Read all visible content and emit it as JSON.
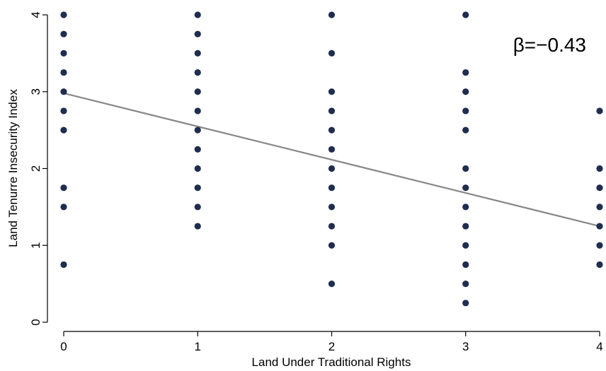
{
  "chart_data": {
    "type": "scatter",
    "xlabel": "Land Under Traditional Rights",
    "ylabel": "Land Tenurre Insecurity Index",
    "xlim": [
      0,
      4
    ],
    "ylim": [
      0,
      4
    ],
    "x_ticks": [
      "0",
      "1",
      "2",
      "3",
      "4"
    ],
    "y_ticks": [
      "0",
      "1",
      "2",
      "3",
      "4"
    ],
    "grid": false,
    "annotation": "β=−0.43",
    "colors": {
      "points": "#1f2d4f",
      "fit_line": "#888888"
    },
    "points": [
      {
        "x": 0,
        "y": 4
      },
      {
        "x": 0,
        "y": 3.75
      },
      {
        "x": 0,
        "y": 3.5
      },
      {
        "x": 0,
        "y": 3.25
      },
      {
        "x": 0,
        "y": 3
      },
      {
        "x": 0,
        "y": 2.75
      },
      {
        "x": 0,
        "y": 2.5
      },
      {
        "x": 0,
        "y": 1.75
      },
      {
        "x": 0,
        "y": 1.5
      },
      {
        "x": 0,
        "y": 0.75
      },
      {
        "x": 1,
        "y": 4
      },
      {
        "x": 1,
        "y": 3.75
      },
      {
        "x": 1,
        "y": 3.5
      },
      {
        "x": 1,
        "y": 3.25
      },
      {
        "x": 1,
        "y": 3
      },
      {
        "x": 1,
        "y": 2.75
      },
      {
        "x": 1,
        "y": 2.5
      },
      {
        "x": 1,
        "y": 2.25
      },
      {
        "x": 1,
        "y": 2
      },
      {
        "x": 1,
        "y": 1.75
      },
      {
        "x": 1,
        "y": 1.5
      },
      {
        "x": 1,
        "y": 1.25
      },
      {
        "x": 2,
        "y": 4
      },
      {
        "x": 2,
        "y": 3.5
      },
      {
        "x": 2,
        "y": 3
      },
      {
        "x": 2,
        "y": 2.75
      },
      {
        "x": 2,
        "y": 2.5
      },
      {
        "x": 2,
        "y": 2.25
      },
      {
        "x": 2,
        "y": 2
      },
      {
        "x": 2,
        "y": 1.75
      },
      {
        "x": 2,
        "y": 1.5
      },
      {
        "x": 2,
        "y": 1.25
      },
      {
        "x": 2,
        "y": 1
      },
      {
        "x": 2,
        "y": 0.5
      },
      {
        "x": 3,
        "y": 4
      },
      {
        "x": 3,
        "y": 3.25
      },
      {
        "x": 3,
        "y": 3
      },
      {
        "x": 3,
        "y": 2.75
      },
      {
        "x": 3,
        "y": 2.5
      },
      {
        "x": 3,
        "y": 2
      },
      {
        "x": 3,
        "y": 1.75
      },
      {
        "x": 3,
        "y": 1.5
      },
      {
        "x": 3,
        "y": 1.25
      },
      {
        "x": 3,
        "y": 1
      },
      {
        "x": 3,
        "y": 0.75
      },
      {
        "x": 3,
        "y": 0.5
      },
      {
        "x": 3,
        "y": 0.25
      },
      {
        "x": 4,
        "y": 2.75
      },
      {
        "x": 4,
        "y": 2
      },
      {
        "x": 4,
        "y": 1.75
      },
      {
        "x": 4,
        "y": 1.5
      },
      {
        "x": 4,
        "y": 1.25
      },
      {
        "x": 4,
        "y": 1
      },
      {
        "x": 4,
        "y": 0.75
      }
    ],
    "fit_line": {
      "x": [
        0,
        4
      ],
      "y": [
        2.98,
        1.25
      ],
      "slope": -0.43
    }
  }
}
